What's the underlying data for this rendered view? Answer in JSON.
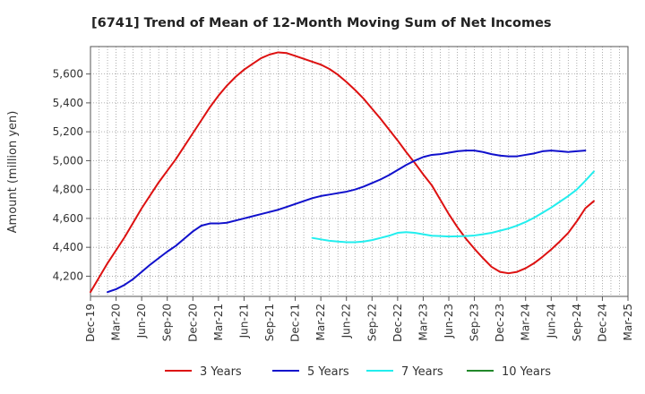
{
  "chart_data": {
    "type": "line",
    "title": "[6741]  Trend of Mean of 12-Month Moving Sum of Net Incomes",
    "xlabel": "",
    "ylabel": "Amount (million yen)",
    "x_tick_labels": [
      "Dec-19",
      "Mar-20",
      "Jun-20",
      "Sep-20",
      "Dec-20",
      "Mar-21",
      "Jun-21",
      "Sep-21",
      "Dec-21",
      "Mar-22",
      "Jun-22",
      "Sep-22",
      "Dec-22",
      "Mar-23",
      "Jun-23",
      "Sep-23",
      "Dec-23",
      "Mar-24",
      "Jun-24",
      "Sep-24",
      "Dec-24",
      "Mar-25"
    ],
    "y_tick_labels": [
      "4,200",
      "4,400",
      "4,600",
      "4,800",
      "5,000",
      "5,200",
      "5,400",
      "5,600"
    ],
    "ylim": [
      4060,
      5790
    ],
    "grid": true,
    "legend_position": "bottom",
    "series": [
      {
        "name": "3 Years",
        "color": "#dd1111",
        "points": [
          [
            0,
            4090
          ],
          [
            1,
            4190
          ],
          [
            2,
            4290
          ],
          [
            3,
            4380
          ],
          [
            4,
            4470
          ],
          [
            5,
            4570
          ],
          [
            6,
            4670
          ],
          [
            7,
            4760
          ],
          [
            8,
            4850
          ],
          [
            9,
            4930
          ],
          [
            10,
            5010
          ],
          [
            11,
            5100
          ],
          [
            12,
            5190
          ],
          [
            13,
            5280
          ],
          [
            14,
            5370
          ],
          [
            15,
            5450
          ],
          [
            16,
            5520
          ],
          [
            17,
            5580
          ],
          [
            18,
            5630
          ],
          [
            19,
            5670
          ],
          [
            20,
            5710
          ],
          [
            21,
            5735
          ],
          [
            22,
            5750
          ],
          [
            23,
            5745
          ],
          [
            24,
            5725
          ],
          [
            25,
            5705
          ],
          [
            26,
            5685
          ],
          [
            27,
            5665
          ],
          [
            28,
            5635
          ],
          [
            29,
            5595
          ],
          [
            30,
            5545
          ],
          [
            31,
            5490
          ],
          [
            32,
            5430
          ],
          [
            33,
            5360
          ],
          [
            34,
            5290
          ],
          [
            35,
            5215
          ],
          [
            36,
            5140
          ],
          [
            37,
            5060
          ],
          [
            38,
            4985
          ],
          [
            39,
            4905
          ],
          [
            40,
            4830
          ],
          [
            41,
            4730
          ],
          [
            42,
            4630
          ],
          [
            43,
            4540
          ],
          [
            44,
            4460
          ],
          [
            45,
            4390
          ],
          [
            46,
            4325
          ],
          [
            47,
            4265
          ],
          [
            48,
            4230
          ],
          [
            49,
            4220
          ],
          [
            50,
            4230
          ],
          [
            51,
            4255
          ],
          [
            52,
            4290
          ],
          [
            53,
            4335
          ],
          [
            54,
            4385
          ],
          [
            55,
            4440
          ],
          [
            56,
            4500
          ],
          [
            57,
            4580
          ],
          [
            58,
            4670
          ],
          [
            59,
            4720
          ]
        ]
      },
      {
        "name": "5 Years",
        "color": "#1010cc",
        "points": [
          [
            2,
            4090
          ],
          [
            3,
            4110
          ],
          [
            4,
            4140
          ],
          [
            5,
            4180
          ],
          [
            6,
            4230
          ],
          [
            7,
            4280
          ],
          [
            8,
            4325
          ],
          [
            9,
            4370
          ],
          [
            10,
            4410
          ],
          [
            11,
            4460
          ],
          [
            12,
            4510
          ],
          [
            13,
            4550
          ],
          [
            14,
            4565
          ],
          [
            15,
            4565
          ],
          [
            16,
            4570
          ],
          [
            17,
            4585
          ],
          [
            18,
            4600
          ],
          [
            19,
            4615
          ],
          [
            20,
            4630
          ],
          [
            21,
            4645
          ],
          [
            22,
            4660
          ],
          [
            23,
            4680
          ],
          [
            24,
            4700
          ],
          [
            25,
            4720
          ],
          [
            26,
            4740
          ],
          [
            27,
            4755
          ],
          [
            28,
            4765
          ],
          [
            29,
            4775
          ],
          [
            30,
            4785
          ],
          [
            31,
            4800
          ],
          [
            32,
            4820
          ],
          [
            33,
            4845
          ],
          [
            34,
            4870
          ],
          [
            35,
            4900
          ],
          [
            36,
            4935
          ],
          [
            37,
            4970
          ],
          [
            38,
            5000
          ],
          [
            39,
            5025
          ],
          [
            40,
            5040
          ],
          [
            41,
            5045
          ],
          [
            42,
            5055
          ],
          [
            43,
            5065
          ],
          [
            44,
            5070
          ],
          [
            45,
            5070
          ],
          [
            46,
            5060
          ],
          [
            47,
            5045
          ],
          [
            48,
            5035
          ],
          [
            49,
            5030
          ],
          [
            50,
            5030
          ],
          [
            51,
            5040
          ],
          [
            52,
            5050
          ],
          [
            53,
            5065
          ],
          [
            54,
            5070
          ],
          [
            55,
            5065
          ],
          [
            56,
            5060
          ],
          [
            57,
            5065
          ],
          [
            58,
            5070
          ]
        ]
      },
      {
        "name": "7 Years",
        "color": "#22eeee",
        "points": [
          [
            26,
            4465
          ],
          [
            27,
            4455
          ],
          [
            28,
            4445
          ],
          [
            29,
            4440
          ],
          [
            30,
            4435
          ],
          [
            31,
            4435
          ],
          [
            32,
            4440
          ],
          [
            33,
            4450
          ],
          [
            34,
            4465
          ],
          [
            35,
            4480
          ],
          [
            36,
            4500
          ],
          [
            37,
            4505
          ],
          [
            38,
            4500
          ],
          [
            39,
            4490
          ],
          [
            40,
            4480
          ],
          [
            41,
            4478
          ],
          [
            42,
            4475
          ],
          [
            43,
            4476
          ],
          [
            44,
            4478
          ],
          [
            45,
            4482
          ],
          [
            46,
            4490
          ],
          [
            47,
            4500
          ],
          [
            48,
            4515
          ],
          [
            49,
            4530
          ],
          [
            50,
            4550
          ],
          [
            51,
            4575
          ],
          [
            52,
            4605
          ],
          [
            53,
            4640
          ],
          [
            54,
            4675
          ],
          [
            55,
            4715
          ],
          [
            56,
            4755
          ],
          [
            57,
            4800
          ],
          [
            58,
            4860
          ],
          [
            59,
            4925
          ]
        ]
      },
      {
        "name": "10 Years",
        "color": "#22882a",
        "points": []
      }
    ]
  }
}
